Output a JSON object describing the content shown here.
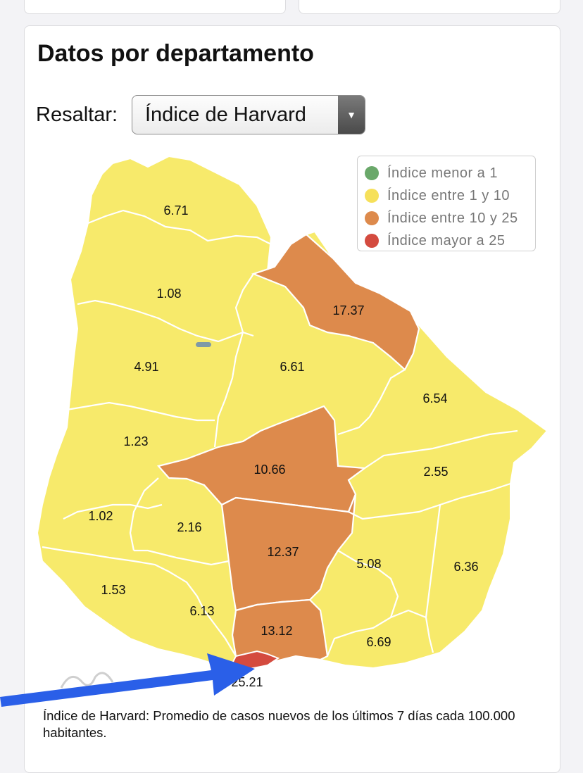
{
  "title": "Datos por departamento",
  "highlight": {
    "label": "Resaltar:",
    "selected": "Índice de Harvard"
  },
  "legend": [
    {
      "label": "Índice menor a 1",
      "color": "#6aa86a"
    },
    {
      "label": "Índice entre 1 y 10",
      "color": "#f6e05a"
    },
    {
      "label": "Índice entre 10 y 25",
      "color": "#dd8a4c"
    },
    {
      "label": "Índice mayor a 25",
      "color": "#d44b3f"
    }
  ],
  "regions": [
    {
      "value": "6.71",
      "category": "yellow"
    },
    {
      "value": "1.08",
      "category": "yellow"
    },
    {
      "value": "17.37",
      "category": "orange"
    },
    {
      "value": "4.91",
      "category": "yellow"
    },
    {
      "value": "6.61",
      "category": "yellow"
    },
    {
      "value": "6.54",
      "category": "yellow"
    },
    {
      "value": "1.23",
      "category": "yellow"
    },
    {
      "value": "10.66",
      "category": "orange"
    },
    {
      "value": "2.55",
      "category": "yellow"
    },
    {
      "value": "1.02",
      "category": "yellow"
    },
    {
      "value": "2.16",
      "category": "yellow"
    },
    {
      "value": "12.37",
      "category": "orange"
    },
    {
      "value": "5.08",
      "category": "yellow"
    },
    {
      "value": "6.36",
      "category": "yellow"
    },
    {
      "value": "1.53",
      "category": "yellow"
    },
    {
      "value": "6.13",
      "category": "yellow"
    },
    {
      "value": "13.12",
      "category": "orange"
    },
    {
      "value": "6.69",
      "category": "yellow"
    },
    {
      "value": "25.21",
      "category": "red"
    }
  ],
  "note": "Índice de Harvard: Promedio de casos nuevos de los últimos 7 días cada 100.000 habitantes.",
  "colors": {
    "yellow": "#f7ea6b",
    "orange": "#dd8a4c",
    "red": "#d44b3f",
    "border": "#ffffff",
    "arrow": "#2a5fe8"
  }
}
